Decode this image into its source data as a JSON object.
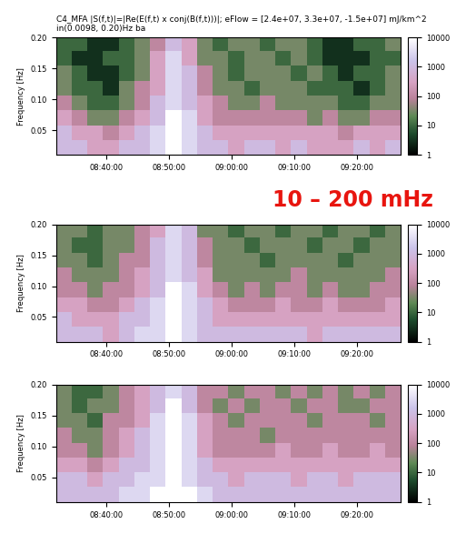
{
  "chart_data": [
    {
      "type": "heatmap",
      "title": "C4_MFA |S(f,t)|=|Re(E(f,t) x conj(B(f,t)))|; eFlow = [2.4e+07, 3.3e+07, -1.5e+07] mJ/km^2 in(0.0098, 0.20)Hz ba",
      "annotation": "10 – 200 mHz",
      "y_label": "Frequency [Hz]",
      "x_edges": [
        512,
        514.5,
        517,
        519.5,
        522,
        524.5,
        527,
        529.5,
        532,
        534.5,
        537,
        539.5,
        542,
        544.5,
        547,
        549.5,
        552,
        554.5,
        557,
        559.5,
        562,
        564.5,
        567
      ],
      "y_edges": [
        0.01,
        0.034,
        0.058,
        0.082,
        0.106,
        0.13,
        0.154,
        0.178,
        0.2
      ],
      "cells": [
        [
          1000,
          1000,
          300,
          300,
          1000,
          1000,
          3000,
          10000,
          3000,
          1000,
          1000,
          300,
          1000,
          1000,
          300,
          1000,
          300,
          300,
          300,
          1000,
          300,
          1000
        ],
        [
          1000,
          300,
          300,
          100,
          300,
          1000,
          3000,
          10000,
          3000,
          1000,
          300,
          300,
          300,
          300,
          300,
          300,
          300,
          300,
          100,
          300,
          300,
          300
        ],
        [
          300,
          100,
          30,
          30,
          100,
          300,
          1000,
          10000,
          3000,
          300,
          100,
          100,
          100,
          100,
          100,
          100,
          30,
          100,
          30,
          30,
          100,
          100
        ],
        [
          100,
          30,
          10,
          10,
          30,
          100,
          1000,
          3000,
          1000,
          300,
          100,
          30,
          30,
          100,
          30,
          30,
          30,
          30,
          10,
          10,
          30,
          30
        ],
        [
          30,
          10,
          10,
          3,
          30,
          100,
          300,
          3000,
          1000,
          100,
          30,
          30,
          10,
          30,
          30,
          30,
          10,
          10,
          10,
          3,
          10,
          30
        ],
        [
          30,
          10,
          3,
          3,
          10,
          30,
          300,
          3000,
          1000,
          100,
          30,
          10,
          30,
          30,
          30,
          10,
          30,
          10,
          3,
          10,
          10,
          30
        ],
        [
          10,
          3,
          3,
          10,
          10,
          30,
          300,
          3000,
          300,
          30,
          30,
          10,
          30,
          30,
          10,
          30,
          10,
          3,
          3,
          3,
          10,
          10
        ],
        [
          10,
          10,
          3,
          3,
          10,
          30,
          100,
          1000,
          300,
          30,
          10,
          30,
          30,
          10,
          30,
          30,
          10,
          3,
          3,
          10,
          10,
          30
        ]
      ],
      "xlim": [
        512,
        567
      ],
      "xticks": [
        {
          "value": 520,
          "label": "08:40:00"
        },
        {
          "value": 530,
          "label": "08:50:00"
        },
        {
          "value": 540,
          "label": "09:00:00"
        },
        {
          "value": 550,
          "label": "09:10:00"
        },
        {
          "value": 560,
          "label": "09:20:00"
        }
      ],
      "ylim": [
        0.01,
        0.2
      ],
      "yticks": [
        0.05,
        {
          "value": 0.1,
          "label": "0.10"
        },
        0.15,
        {
          "value": 0.2,
          "label": "0.20"
        }
      ],
      "colorbar_range": [
        1,
        10000
      ],
      "colorbar_ticks": [
        1,
        10,
        100,
        1000,
        10000
      ]
    },
    {
      "type": "heatmap",
      "y_label": "Frequency [Hz]",
      "x_edges": [
        512,
        514.5,
        517,
        519.5,
        522,
        524.5,
        527,
        529.5,
        532,
        534.5,
        537,
        539.5,
        542,
        544.5,
        547,
        549.5,
        552,
        554.5,
        557,
        559.5,
        562,
        564.5,
        567
      ],
      "y_edges": [
        0.01,
        0.034,
        0.058,
        0.082,
        0.106,
        0.13,
        0.154,
        0.178,
        0.2
      ],
      "cells": [
        [
          1000,
          1000,
          1000,
          300,
          1000,
          3000,
          3000,
          10000,
          3000,
          1000,
          1000,
          1000,
          1000,
          1000,
          1000,
          1000,
          300,
          1000,
          1000,
          1000,
          1000,
          1000
        ],
        [
          1000,
          300,
          300,
          300,
          1000,
          1000,
          3000,
          10000,
          3000,
          1000,
          300,
          300,
          300,
          300,
          300,
          300,
          300,
          300,
          300,
          300,
          300,
          300
        ],
        [
          300,
          300,
          100,
          100,
          300,
          1000,
          3000,
          10000,
          3000,
          1000,
          300,
          100,
          100,
          100,
          300,
          100,
          100,
          300,
          100,
          100,
          100,
          300
        ],
        [
          100,
          100,
          30,
          100,
          100,
          300,
          1000,
          10000,
          3000,
          300,
          100,
          30,
          100,
          30,
          100,
          100,
          30,
          100,
          30,
          30,
          100,
          100
        ],
        [
          100,
          30,
          30,
          30,
          100,
          300,
          1000,
          3000,
          1000,
          300,
          30,
          30,
          30,
          30,
          30,
          100,
          30,
          30,
          30,
          30,
          30,
          100
        ],
        [
          30,
          30,
          10,
          30,
          100,
          100,
          1000,
          3000,
          1000,
          100,
          30,
          30,
          30,
          10,
          30,
          30,
          30,
          30,
          10,
          30,
          30,
          30
        ],
        [
          30,
          10,
          10,
          30,
          30,
          100,
          1000,
          3000,
          1000,
          100,
          30,
          30,
          10,
          30,
          30,
          30,
          10,
          30,
          30,
          10,
          30,
          30
        ],
        [
          30,
          30,
          10,
          30,
          30,
          100,
          300,
          3000,
          1000,
          30,
          30,
          10,
          30,
          30,
          10,
          30,
          30,
          10,
          30,
          30,
          10,
          30
        ]
      ],
      "xlim": [
        512,
        567
      ],
      "xticks": [
        {
          "value": 520,
          "label": "08:40:00"
        },
        {
          "value": 530,
          "label": "08:50:00"
        },
        {
          "value": 540,
          "label": "09:00:00"
        },
        {
          "value": 550,
          "label": "09:10:00"
        },
        {
          "value": 560,
          "label": "09:20:00"
        }
      ],
      "ylim": [
        0.01,
        0.2
      ],
      "yticks": [
        0.05,
        {
          "value": 0.1,
          "label": "0.10"
        },
        0.15,
        {
          "value": 0.2,
          "label": "0.20"
        }
      ],
      "colorbar_range": [
        1,
        10000
      ],
      "colorbar_ticks": [
        1,
        10,
        100,
        1000,
        10000
      ]
    },
    {
      "type": "heatmap",
      "y_label": "Frequency [Hz]",
      "x_edges": [
        512,
        514.5,
        517,
        519.5,
        522,
        524.5,
        527,
        529.5,
        532,
        534.5,
        537,
        539.5,
        542,
        544.5,
        547,
        549.5,
        552,
        554.5,
        557,
        559.5,
        562,
        564.5,
        567
      ],
      "y_edges": [
        0.01,
        0.034,
        0.058,
        0.082,
        0.106,
        0.13,
        0.154,
        0.178,
        0.2
      ],
      "cells": [
        [
          1000,
          1000,
          1000,
          1000,
          3000,
          3000,
          10000,
          10000,
          10000,
          3000,
          1000,
          1000,
          1000,
          1000,
          1000,
          1000,
          1000,
          1000,
          1000,
          1000,
          1000,
          1000
        ],
        [
          1000,
          1000,
          300,
          1000,
          1000,
          3000,
          3000,
          10000,
          3000,
          1000,
          1000,
          300,
          1000,
          1000,
          1000,
          300,
          1000,
          1000,
          300,
          1000,
          1000,
          1000
        ],
        [
          300,
          300,
          100,
          300,
          1000,
          1000,
          3000,
          10000,
          3000,
          1000,
          300,
          300,
          300,
          300,
          300,
          300,
          300,
          300,
          300,
          300,
          300,
          300
        ],
        [
          100,
          100,
          30,
          100,
          300,
          1000,
          3000,
          10000,
          3000,
          300,
          100,
          100,
          100,
          100,
          300,
          100,
          100,
          300,
          100,
          100,
          300,
          100
        ],
        [
          100,
          30,
          30,
          100,
          300,
          1000,
          3000,
          10000,
          3000,
          300,
          100,
          100,
          100,
          30,
          100,
          100,
          100,
          100,
          100,
          100,
          100,
          100
        ],
        [
          30,
          30,
          10,
          100,
          100,
          300,
          3000,
          10000,
          3000,
          300,
          100,
          30,
          100,
          100,
          100,
          100,
          30,
          100,
          100,
          100,
          30,
          100
        ],
        [
          30,
          10,
          30,
          30,
          100,
          300,
          1000,
          10000,
          1000,
          100,
          30,
          100,
          30,
          100,
          100,
          30,
          100,
          100,
          30,
          30,
          100,
          100
        ],
        [
          30,
          10,
          10,
          30,
          100,
          300,
          1000,
          3000,
          1000,
          100,
          100,
          30,
          100,
          100,
          30,
          100,
          30,
          100,
          30,
          100,
          30,
          100
        ]
      ],
      "xlim": [
        512,
        567
      ],
      "xticks": [
        {
          "value": 520,
          "label": "08:40:00"
        },
        {
          "value": 530,
          "label": "08:50:00"
        },
        {
          "value": 540,
          "label": "09:00:00"
        },
        {
          "value": 550,
          "label": "09:10:00"
        },
        {
          "value": 560,
          "label": "09:20:00"
        }
      ],
      "ylim": [
        0.01,
        0.2
      ],
      "yticks": [
        0.05,
        {
          "value": 0.1,
          "label": "0.10"
        },
        0.15,
        {
          "value": 0.2,
          "label": "0.20"
        }
      ],
      "colorbar_range": [
        1,
        10000
      ],
      "colorbar_ticks": [
        1,
        10,
        100,
        1000,
        10000
      ]
    }
  ]
}
